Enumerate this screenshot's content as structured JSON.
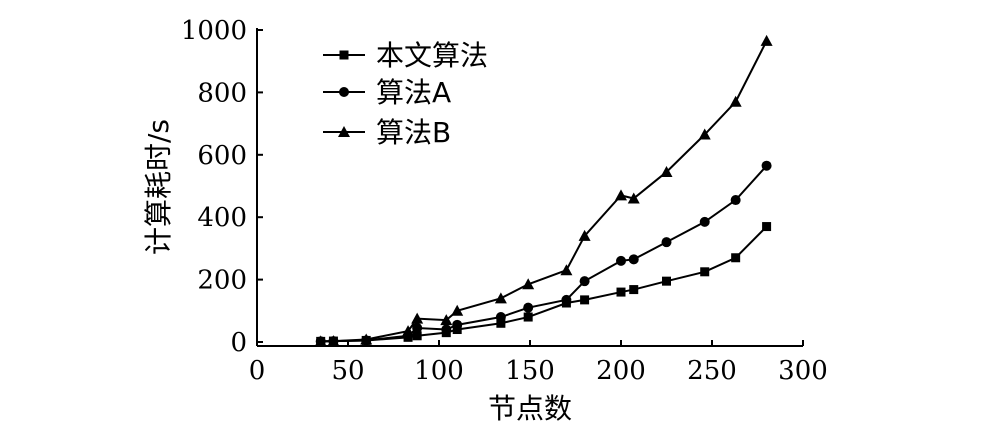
{
  "chart_data": {
    "type": "line",
    "xlabel": "节点数",
    "ylabel": "计算耗时/s",
    "xlim": [
      0,
      300
    ],
    "ylim": [
      0,
      1000
    ],
    "xticks": [
      0,
      50,
      100,
      150,
      200,
      250,
      300
    ],
    "yticks": [
      0,
      200,
      400,
      600,
      800,
      1000
    ],
    "grid": false,
    "legend_position": "top-left",
    "series": [
      {
        "name": "本文算法",
        "marker": "square",
        "x": [
          35,
          42,
          60,
          83,
          88,
          104,
          110,
          134,
          149,
          170,
          180,
          200,
          207,
          225,
          246,
          263,
          280
        ],
        "y": [
          2,
          3,
          5,
          15,
          20,
          30,
          40,
          60,
          80,
          125,
          135,
          160,
          168,
          195,
          225,
          270,
          370
        ]
      },
      {
        "name": "算法A",
        "marker": "circle",
        "x": [
          35,
          42,
          60,
          83,
          88,
          104,
          110,
          134,
          149,
          170,
          180,
          200,
          207,
          225,
          246,
          263,
          280
        ],
        "y": [
          2,
          3,
          5,
          20,
          45,
          40,
          55,
          80,
          110,
          135,
          195,
          260,
          265,
          320,
          385,
          455,
          565
        ]
      },
      {
        "name": "算法B",
        "marker": "triangle",
        "x": [
          35,
          42,
          60,
          83,
          88,
          104,
          110,
          134,
          149,
          170,
          180,
          200,
          207,
          225,
          246,
          263,
          280
        ],
        "y": [
          2,
          3,
          8,
          35,
          75,
          70,
          100,
          140,
          185,
          230,
          340,
          470,
          460,
          545,
          665,
          770,
          965
        ]
      }
    ]
  }
}
